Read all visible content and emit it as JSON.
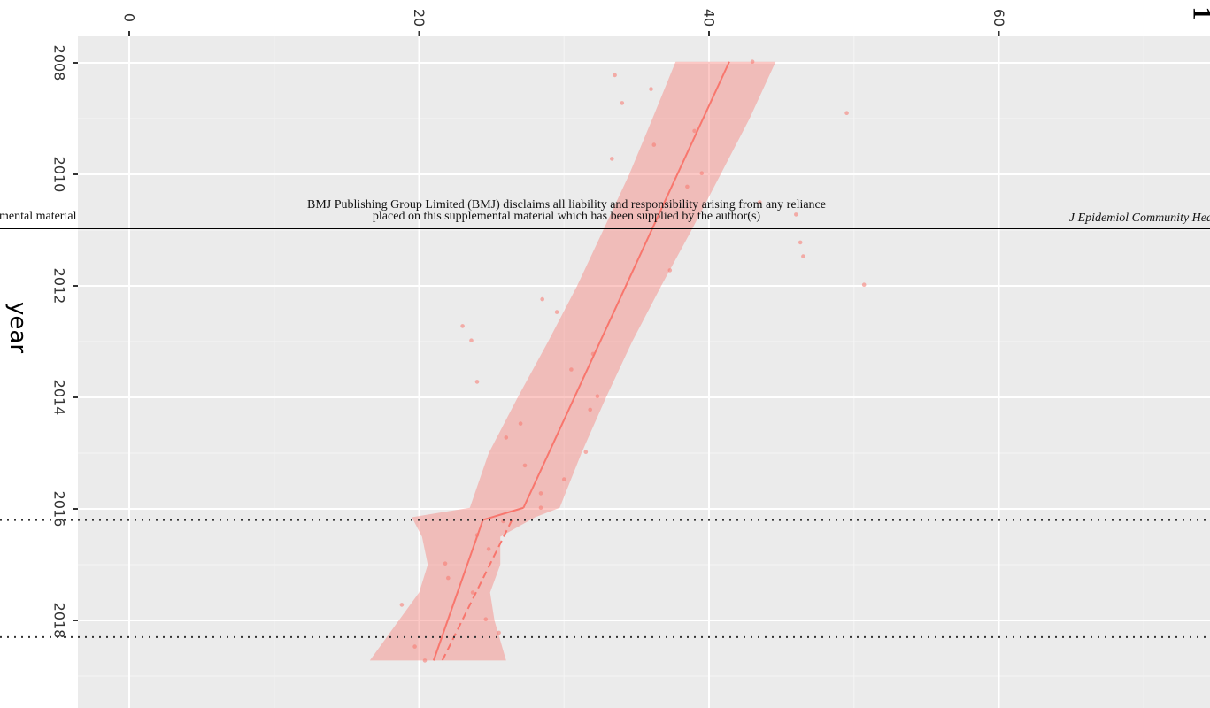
{
  "page_number": "1",
  "header": {
    "left": "mental material",
    "center_line1": "BMJ Publishing Group Limited (BMJ) disclaims all liability and responsibility arising from any reliance",
    "center_line2": "placed on this supplemental material which has been supplied by the author(s)",
    "right": "J Epidemiol Community Hea"
  },
  "chart_data": {
    "type": "scatter",
    "orientation": "rotated-90",
    "title": "",
    "xlabel": "year",
    "ylabel": "",
    "x_ticks": [
      "2008",
      "2010",
      "2012",
      "2014",
      "2016",
      "2018"
    ],
    "y_ticks": [
      "0",
      "20",
      "40",
      "60"
    ],
    "xlim": [
      2007.6,
      2019.55
    ],
    "ylim": [
      -3.5,
      75
    ],
    "grid": true,
    "background": "#EBEBEB",
    "accent_color": "#F8766D",
    "points": [
      {
        "x": 2007.98,
        "y": 43.0
      },
      {
        "x": 2008.22,
        "y": 33.5
      },
      {
        "x": 2008.47,
        "y": 36.0
      },
      {
        "x": 2008.72,
        "y": 34.0
      },
      {
        "x": 2008.9,
        "y": 49.5
      },
      {
        "x": 2009.22,
        "y": 39.0
      },
      {
        "x": 2009.47,
        "y": 36.2
      },
      {
        "x": 2009.72,
        "y": 33.3
      },
      {
        "x": 2009.98,
        "y": 39.5
      },
      {
        "x": 2010.22,
        "y": 38.5
      },
      {
        "x": 2010.5,
        "y": 43.5
      },
      {
        "x": 2010.72,
        "y": 46.0
      },
      {
        "x": 2011.22,
        "y": 46.3
      },
      {
        "x": 2011.47,
        "y": 46.5
      },
      {
        "x": 2011.72,
        "y": 37.3
      },
      {
        "x": 2011.98,
        "y": 50.7
      },
      {
        "x": 2012.24,
        "y": 28.5
      },
      {
        "x": 2012.47,
        "y": 29.5
      },
      {
        "x": 2012.72,
        "y": 23.0
      },
      {
        "x": 2012.98,
        "y": 23.6
      },
      {
        "x": 2013.22,
        "y": 32.0
      },
      {
        "x": 2013.5,
        "y": 30.5
      },
      {
        "x": 2013.72,
        "y": 24.0
      },
      {
        "x": 2013.98,
        "y": 32.3
      },
      {
        "x": 2014.22,
        "y": 31.8
      },
      {
        "x": 2014.47,
        "y": 27.0
      },
      {
        "x": 2014.72,
        "y": 26.0
      },
      {
        "x": 2014.98,
        "y": 31.5
      },
      {
        "x": 2015.22,
        "y": 27.3
      },
      {
        "x": 2015.47,
        "y": 30.0
      },
      {
        "x": 2015.72,
        "y": 28.4
      },
      {
        "x": 2015.98,
        "y": 28.4
      },
      {
        "x": 2016.22,
        "y": 25.8
      },
      {
        "x": 2016.47,
        "y": 24.0
      },
      {
        "x": 2016.72,
        "y": 24.8
      },
      {
        "x": 2016.98,
        "y": 21.8
      },
      {
        "x": 2017.24,
        "y": 22.0
      },
      {
        "x": 2017.5,
        "y": 23.7
      },
      {
        "x": 2017.72,
        "y": 18.8
      },
      {
        "x": 2017.98,
        "y": 24.6
      },
      {
        "x": 2018.22,
        "y": 25.5
      },
      {
        "x": 2018.47,
        "y": 19.7
      },
      {
        "x": 2018.72,
        "y": 20.4
      }
    ],
    "fit_segments": [
      {
        "x": [
          2007.98,
          2015.98
        ],
        "y": [
          41.4,
          27.2
        ]
      },
      {
        "x": [
          2015.98,
          2016.2
        ],
        "y": [
          27.2,
          24.4
        ]
      },
      {
        "x": [
          2016.2,
          2018.72
        ],
        "y": [
          24.4,
          21.0
        ]
      }
    ],
    "counterfactual": {
      "x": [
        2016.2,
        2018.72
      ],
      "y": [
        26.4,
        21.6
      ]
    },
    "ribbon": {
      "x": [
        2007.98,
        2009.0,
        2010.0,
        2011.0,
        2012.0,
        2013.0,
        2014.0,
        2015.0,
        2015.98,
        2016.15,
        2016.5,
        2017.0,
        2017.5,
        2018.0,
        2018.72
      ],
      "lower": [
        37.7,
        36.1,
        34.5,
        32.7,
        30.9,
        28.9,
        26.8,
        24.8,
        23.5,
        19.5,
        20.2,
        20.6,
        20.0,
        18.6,
        16.6
      ],
      "upper": [
        44.6,
        42.8,
        40.8,
        38.8,
        36.7,
        34.7,
        32.9,
        31.2,
        29.7,
        28.0,
        25.6,
        25.6,
        24.9,
        25.2,
        26.0
      ]
    },
    "interruptions": [
      2016.2,
      2018.3
    ]
  }
}
